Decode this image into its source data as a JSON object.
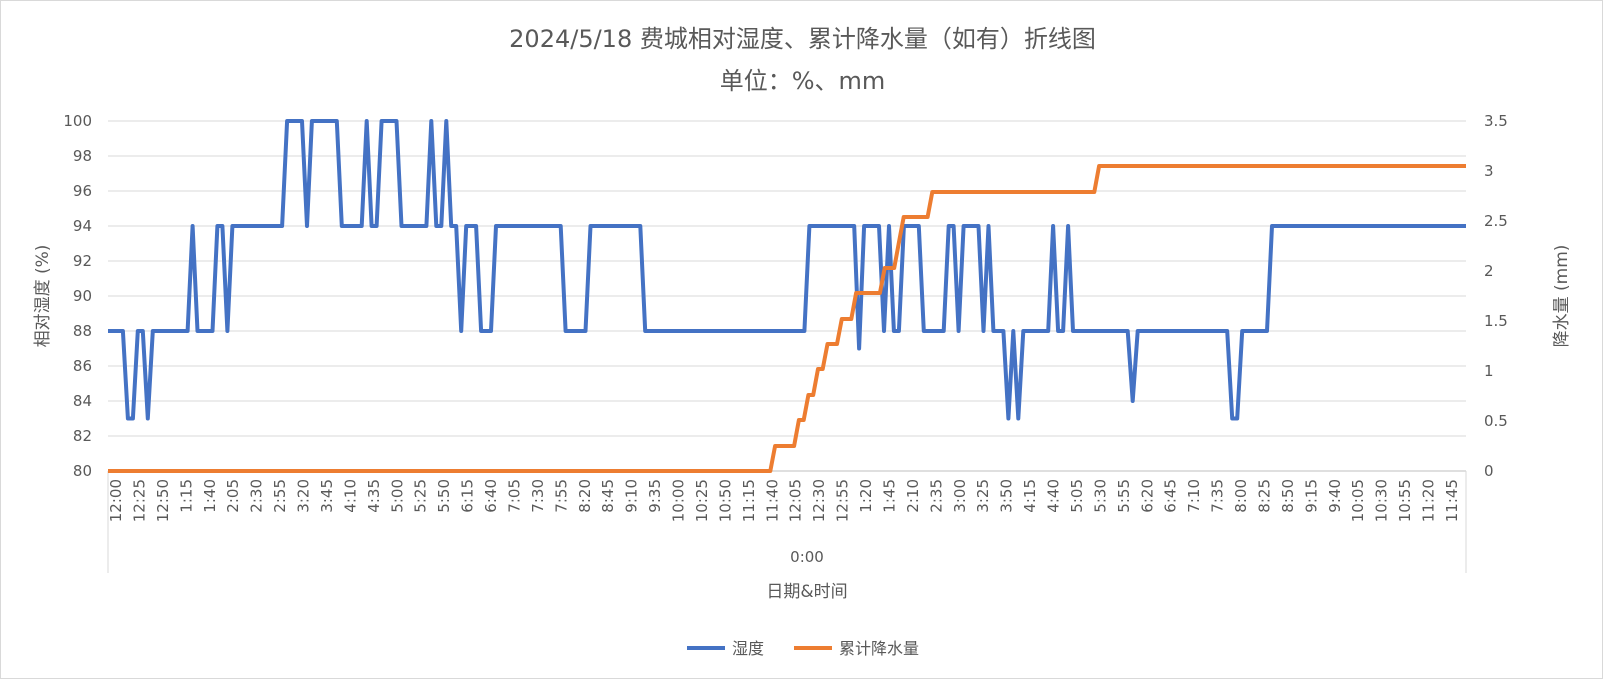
{
  "chart_data": {
    "type": "line",
    "title": "2024/5/18 费城相对湿度、累计降水量（如有）折线图",
    "subtitle": "单位：%、mm",
    "xlabel": "日期&时间",
    "x_group_label": "0:00",
    "ylabel_left": "相对湿度 (%)",
    "ylabel_right": "降水量 (mm)",
    "ylim_left": [
      80,
      100
    ],
    "ylim_right": [
      0,
      3.5
    ],
    "yticks_left": [
      "80",
      "82",
      "84",
      "86",
      "88",
      "90",
      "92",
      "94",
      "96",
      "98",
      "100"
    ],
    "yticks_right": [
      "0",
      "0.5",
      "1",
      "1.5",
      "2",
      "2.5",
      "3",
      "3.5"
    ],
    "grid": true,
    "legend_position": "bottom",
    "x_tick_labels": [
      "12:00",
      "12:25",
      "12:50",
      "1:15",
      "1:40",
      "2:05",
      "2:30",
      "2:55",
      "3:20",
      "3:45",
      "4:10",
      "4:35",
      "5:00",
      "5:25",
      "5:50",
      "6:15",
      "6:40",
      "7:05",
      "7:30",
      "7:55",
      "8:20",
      "8:45",
      "9:10",
      "9:35",
      "10:00",
      "10:25",
      "10:50",
      "11:15",
      "11:40",
      "12:05",
      "12:30",
      "12:55",
      "1:20",
      "1:45",
      "2:10",
      "2:35",
      "3:00",
      "3:25",
      "3:50",
      "4:15",
      "4:40",
      "5:05",
      "5:30",
      "5:55",
      "6:20",
      "6:45",
      "7:10",
      "7:35",
      "8:00",
      "8:25",
      "8:50",
      "9:15",
      "9:40",
      "10:05",
      "10:30",
      "10:55",
      "11:20",
      "11:45"
    ],
    "series": [
      {
        "name": "湿度",
        "color": "#4472c4",
        "axis": "left",
        "values": [
          88,
          88,
          88,
          88,
          83,
          83,
          88,
          88,
          83,
          88,
          88,
          88,
          88,
          88,
          88,
          88,
          88,
          94,
          88,
          88,
          88,
          88,
          94,
          94,
          88,
          94,
          94,
          94,
          94,
          94,
          94,
          94,
          94,
          94,
          94,
          94,
          100,
          100,
          100,
          100,
          94,
          100,
          100,
          100,
          100,
          100,
          100,
          94,
          94,
          94,
          94,
          94,
          100,
          94,
          94,
          100,
          100,
          100,
          100,
          94,
          94,
          94,
          94,
          94,
          94,
          100,
          94,
          94,
          100,
          94,
          94,
          88,
          94,
          94,
          94,
          88,
          88,
          88,
          94,
          94,
          94,
          94,
          94,
          94,
          94,
          94,
          94,
          94,
          94,
          94,
          94,
          94,
          88,
          88,
          88,
          88,
          88,
          94,
          94,
          94,
          94,
          94,
          94,
          94,
          94,
          94,
          94,
          94,
          88,
          88,
          88,
          88,
          88,
          88,
          88,
          88,
          88,
          88,
          88,
          88,
          88,
          88,
          88,
          88,
          88,
          88,
          88,
          88,
          88,
          88,
          88,
          88,
          88,
          88,
          88,
          88,
          88,
          88,
          88,
          88,
          88,
          94,
          94,
          94,
          94,
          94,
          94,
          94,
          94,
          94,
          94,
          87,
          94,
          94,
          94,
          94,
          88,
          94,
          88,
          88,
          94,
          94,
          94,
          94,
          88,
          88,
          88,
          88,
          88,
          94,
          94,
          88,
          94,
          94,
          94,
          94,
          88,
          94,
          88,
          88,
          88,
          83,
          88,
          83,
          88,
          88,
          88,
          88,
          88,
          88,
          94,
          88,
          88,
          94,
          88,
          88,
          88,
          88,
          88,
          88,
          88,
          88,
          88,
          88,
          88,
          88,
          84,
          88,
          88,
          88,
          88,
          88,
          88,
          88,
          88,
          88,
          88,
          88,
          88,
          88,
          88,
          88,
          88,
          88,
          88,
          88,
          83,
          83,
          88,
          88,
          88,
          88,
          88,
          88,
          94,
          94,
          94,
          94,
          94,
          94,
          94,
          94,
          94,
          94,
          94,
          94,
          94,
          94,
          94,
          94,
          94,
          94,
          94,
          94,
          94,
          94,
          94,
          94,
          94,
          94,
          94,
          94,
          94,
          94,
          94,
          94,
          94,
          94,
          94,
          94,
          94,
          94,
          94,
          94
        ]
      },
      {
        "name": "累计降水量",
        "color": "#ed7d31",
        "axis": "right",
        "values": [
          0,
          0,
          0,
          0,
          0,
          0,
          0,
          0,
          0,
          0,
          0,
          0,
          0,
          0,
          0,
          0,
          0,
          0,
          0,
          0,
          0,
          0,
          0,
          0,
          0,
          0,
          0,
          0,
          0,
          0,
          0,
          0,
          0,
          0,
          0,
          0,
          0,
          0,
          0,
          0,
          0,
          0,
          0,
          0,
          0,
          0,
          0,
          0,
          0,
          0,
          0,
          0,
          0,
          0,
          0,
          0,
          0,
          0,
          0,
          0,
          0,
          0,
          0,
          0,
          0,
          0,
          0,
          0,
          0,
          0,
          0,
          0,
          0,
          0,
          0,
          0,
          0,
          0,
          0,
          0,
          0,
          0,
          0,
          0,
          0,
          0,
          0,
          0,
          0,
          0,
          0,
          0,
          0,
          0,
          0,
          0,
          0,
          0,
          0,
          0,
          0,
          0,
          0,
          0,
          0,
          0,
          0,
          0,
          0,
          0,
          0,
          0,
          0,
          0,
          0,
          0,
          0,
          0,
          0,
          0,
          0,
          0,
          0,
          0,
          0,
          0,
          0,
          0,
          0,
          0,
          0,
          0,
          0,
          0,
          0,
          0,
          0,
          0,
          0,
          0,
          0.25,
          0.25,
          0.25,
          0.25,
          0.25,
          0.51,
          0.51,
          0.76,
          0.76,
          1.02,
          1.02,
          1.27,
          1.27,
          1.27,
          1.52,
          1.52,
          1.52,
          1.78,
          1.78,
          1.78,
          1.78,
          1.78,
          1.78,
          2.03,
          2.03,
          2.03,
          2.29,
          2.54,
          2.54,
          2.54,
          2.54,
          2.54,
          2.54,
          2.79,
          2.79,
          2.79,
          2.79,
          2.79,
          2.79,
          2.79,
          2.79,
          2.79,
          2.79,
          2.79,
          2.79,
          2.79,
          2.79,
          2.79,
          2.79,
          2.79,
          2.79,
          2.79,
          2.79,
          2.79,
          2.79,
          2.79,
          2.79,
          2.79,
          2.79,
          2.79,
          2.79,
          2.79,
          2.79,
          2.79,
          2.79,
          2.79,
          2.79,
          2.79,
          3.05,
          3.05,
          3.05,
          3.05,
          3.05,
          3.05,
          3.05,
          3.05,
          3.05,
          3.05,
          3.05,
          3.05,
          3.05,
          3.05,
          3.05,
          3.05,
          3.05,
          3.05,
          3.05,
          3.05,
          3.05,
          3.05,
          3.05,
          3.05,
          3.05,
          3.05,
          3.05,
          3.05,
          3.05,
          3.05,
          3.05,
          3.05,
          3.05,
          3.05,
          3.05,
          3.05,
          3.05,
          3.05,
          3.05,
          3.05,
          3.05,
          3.05,
          3.05,
          3.05,
          3.05,
          3.05,
          3.05,
          3.05,
          3.05,
          3.05,
          3.05,
          3.05,
          3.05,
          3.05,
          3.05,
          3.05,
          3.05,
          3.05,
          3.05,
          3.05,
          3.05,
          3.05,
          3.05,
          3.05,
          3.05,
          3.05,
          3.05,
          3.05,
          3.05,
          3.05,
          3.05,
          3.05,
          3.05,
          3.05,
          3.05,
          3.05,
          3.05,
          3.05
        ]
      }
    ]
  }
}
